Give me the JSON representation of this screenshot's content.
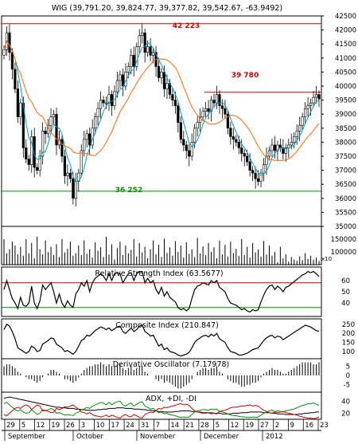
{
  "chart_data": {
    "type": "line",
    "panels": {
      "price": {
        "title": "WIG (39,791.20, 39,824.77, 39,377.82, 39,542.67, -63.9492)",
        "ylim": [
          35000,
          42500
        ],
        "yticks": [
          35000,
          35500,
          36000,
          36500,
          37000,
          37500,
          38000,
          38500,
          39000,
          39500,
          40000,
          40500,
          41000,
          41500,
          42000,
          42500
        ],
        "levels": [
          {
            "label": "42 223",
            "value": 42223,
            "color": "#d00000"
          },
          {
            "label": "39 780",
            "value": 39780,
            "color": "#d00000"
          },
          {
            "label": "36 252",
            "value": 36252,
            "color": "#009000"
          }
        ],
        "close": [
          41300,
          41900,
          41200,
          40600,
          39900,
          38900,
          39400,
          37800,
          37400,
          37200,
          38200,
          37100,
          37000,
          37500,
          38400,
          38300,
          38600,
          38900,
          39000,
          37900,
          38100,
          37500,
          36800,
          36900,
          36700,
          36000,
          36600,
          36900,
          37700,
          38100,
          38300,
          37900,
          38500,
          38900,
          39200,
          39500,
          39400,
          39400,
          39700,
          39300,
          39800,
          40200,
          40400,
          40000,
          40500,
          40700,
          41100,
          40700,
          41400,
          41800,
          41900,
          41200,
          41400,
          41100,
          41200,
          40700,
          40300,
          40500,
          39900,
          40100,
          39700,
          39500,
          39300,
          38700,
          38100,
          37900,
          37700,
          37500,
          38000,
          38500,
          38700,
          38900,
          39100,
          39200,
          39100,
          39500,
          39400,
          39700,
          39300,
          39200,
          39000,
          38500,
          38200,
          38100,
          38000,
          37800,
          37600,
          37500,
          37300,
          37000,
          36900,
          36700,
          36600,
          36900,
          37200,
          37500,
          37700,
          37900,
          37700,
          37900,
          37800,
          37600,
          37800,
          37900,
          38000,
          38200,
          38400,
          38600,
          38900,
          39200,
          39300,
          39400,
          39600,
          39700,
          39543
        ]
      },
      "volume": {
        "yticks": [
          100000,
          150000
        ],
        "ylim": [
          50000,
          200000
        ],
        "multiplier_label": "x10",
        "values": [
          150000,
          95000,
          110000,
          140000,
          125000,
          90000,
          120000,
          85000,
          150000,
          95000,
          135000,
          75000,
          160000,
          110000,
          90000,
          145000,
          100000,
          120000,
          88000,
          130000,
          80000,
          150000,
          98000,
          112000,
          140000,
          85000,
          95000,
          125000,
          88000,
          145000,
          92000,
          110000,
          78000,
          138000,
          105000,
          118000,
          80000,
          160000,
          90000,
          130000,
          70000,
          115000,
          140000,
          88000,
          125000,
          95000,
          108000,
          150000,
          82000,
          135000,
          98000,
          120000,
          76000,
          110000,
          145000,
          90000,
          128000,
          80000,
          152000,
          96000,
          118000,
          85000,
          142000,
          100000,
          125000,
          78000,
          138000,
          92000,
          110000,
          80000,
          155000,
          94000,
          122000,
          86000,
          135000,
          100000,
          118000,
          75000,
          145000,
          90000,
          128000,
          82000,
          140000,
          96000,
          112000,
          84000,
          150000,
          88000,
          120000,
          78000,
          135000,
          98000,
          110000,
          82000,
          143000,
          90000,
          125000,
          85000,
          100000,
          60000,
          120000,
          75000,
          90000,
          62000,
          80000,
          70000,
          65000,
          82000,
          68000,
          95000,
          72000,
          85000,
          70000,
          78000,
          65000
        ]
      },
      "rsi": {
        "title": "Relative Strength Index (63.5677)",
        "yticks": [
          40,
          50,
          60
        ],
        "ylim": [
          28,
          72
        ],
        "upper": 58,
        "lower": 36,
        "values": [
          52,
          60,
          52,
          44,
          40,
          35,
          45,
          38,
          37,
          40,
          55,
          40,
          35,
          42,
          56,
          52,
          55,
          58,
          50,
          40,
          48,
          40,
          36,
          42,
          38,
          36,
          48,
          52,
          58,
          55,
          60,
          50,
          58,
          62,
          64,
          66,
          64,
          60,
          66,
          60,
          66,
          67,
          66,
          58,
          62,
          66,
          67,
          60,
          66,
          68,
          68,
          58,
          62,
          58,
          60,
          52,
          48,
          54,
          46,
          50,
          45,
          43,
          41,
          36,
          34,
          35,
          33,
          35,
          44,
          52,
          55,
          56,
          58,
          57,
          56,
          60,
          58,
          60,
          54,
          52,
          50,
          44,
          40,
          39,
          38,
          36,
          34,
          35,
          33,
          32,
          34,
          33,
          34,
          41,
          47,
          52,
          55,
          56,
          52,
          55,
          53,
          50,
          54,
          55,
          57,
          59,
          61,
          63,
          65,
          66,
          68,
          67,
          68,
          66,
          63.5677
        ]
      },
      "composite": {
        "title": "Composite Index (210.847)",
        "yticks": [
          100,
          150,
          200,
          250
        ],
        "ylim": [
          60,
          280
        ],
        "values": [
          220,
          250,
          240,
          210,
          170,
          120,
          110,
          100,
          90,
          100,
          130,
          120,
          100,
          105,
          140,
          150,
          160,
          175,
          170,
          140,
          130,
          120,
          100,
          105,
          95,
          85,
          100,
          130,
          160,
          170,
          190,
          185,
          200,
          215,
          225,
          235,
          230,
          220,
          230,
          215,
          225,
          235,
          240,
          210,
          200,
          215,
          230,
          210,
          220,
          240,
          245,
          210,
          200,
          185,
          190,
          160,
          130,
          140,
          110,
          120,
          100,
          95,
          90,
          80,
          75,
          80,
          85,
          95,
          120,
          150,
          165,
          175,
          185,
          190,
          180,
          195,
          185,
          200,
          170,
          160,
          150,
          120,
          100,
          95,
          90,
          80,
          80,
          85,
          90,
          100,
          110,
          115,
          120,
          140,
          160,
          175,
          185,
          190,
          175,
          185,
          180,
          165,
          175,
          185,
          195,
          205,
          215,
          225,
          235,
          245,
          240,
          235,
          225,
          215,
          210.847
        ]
      },
      "derivative": {
        "title": "Derivative Oscillator (7.17978)",
        "yticks": [
          -5,
          0,
          5
        ],
        "ylim": [
          -9,
          9
        ],
        "values": [
          5,
          6,
          6,
          5,
          4,
          2,
          1,
          0,
          -1,
          -2,
          -2,
          -3,
          -4,
          -3,
          -1,
          0,
          1,
          3,
          3,
          2,
          1,
          0,
          -2,
          -2,
          -3,
          -4,
          -3,
          -1,
          1,
          3,
          4,
          5,
          5,
          6,
          6,
          7,
          6,
          5,
          6,
          5,
          5,
          6,
          6,
          4,
          3,
          4,
          5,
          3,
          4,
          5,
          5,
          2,
          1,
          0,
          0,
          -2,
          -3,
          -2,
          -4,
          -3,
          -4,
          -5,
          -6,
          -7,
          -7,
          -6,
          -5,
          -4,
          -2,
          0,
          2,
          3,
          4,
          4,
          3,
          4,
          4,
          5,
          2,
          1,
          0,
          -2,
          -3,
          -4,
          -4,
          -5,
          -6,
          -6,
          -5,
          -5,
          -4,
          -4,
          -3,
          -1,
          1,
          2,
          3,
          4,
          3,
          3,
          2,
          1,
          1,
          2,
          3,
          4,
          5,
          6,
          7,
          7,
          7,
          7,
          6,
          6,
          7.17978
        ]
      },
      "adx": {
        "title": "ADX, +DI, -DI",
        "yticks": [
          20,
          40
        ],
        "ylim": [
          10,
          55
        ],
        "adx": [
          45,
          46,
          47,
          46,
          45,
          44,
          43,
          42,
          41,
          40,
          39,
          38,
          37,
          36,
          35,
          34,
          33,
          32,
          31,
          30,
          30,
          29,
          29,
          28,
          28,
          28,
          27,
          27,
          26,
          26,
          25,
          25,
          25,
          25,
          26,
          26,
          27,
          27,
          28,
          28,
          28,
          29,
          29,
          29,
          28,
          28,
          28,
          27,
          27,
          27,
          26,
          26,
          25,
          25,
          24,
          24,
          23,
          23,
          22,
          22,
          22,
          22,
          23,
          23,
          24,
          24,
          24,
          24,
          23,
          23,
          22,
          22,
          21,
          21,
          21,
          21,
          20,
          20,
          20,
          19,
          19,
          19,
          19,
          20,
          20,
          20,
          21,
          21,
          21,
          22,
          22,
          22,
          22,
          22,
          21,
          21,
          21,
          20,
          20,
          19,
          19,
          19,
          18,
          18,
          18,
          18,
          18,
          19,
          19,
          20,
          20,
          21,
          21,
          22,
          22
        ],
        "plus_di": [
          36,
          38,
          34,
          30,
          26,
          24,
          26,
          22,
          20,
          21,
          26,
          22,
          18,
          20,
          26,
          24,
          26,
          28,
          26,
          20,
          21,
          19,
          17,
          18,
          17,
          16,
          20,
          22,
          26,
          27,
          30,
          28,
          32,
          34,
          36,
          38,
          37,
          34,
          38,
          34,
          37,
          39,
          40,
          34,
          32,
          35,
          37,
          32,
          35,
          38,
          39,
          32,
          30,
          27,
          28,
          24,
          21,
          22,
          19,
          20,
          18,
          17,
          16,
          14,
          13,
          14,
          13,
          14,
          18,
          22,
          24,
          25,
          26,
          26,
          25,
          27,
          26,
          27,
          23,
          22,
          21,
          19,
          17,
          16,
          16,
          15,
          14,
          14,
          13,
          13,
          14,
          13,
          14,
          17,
          20,
          22,
          24,
          25,
          23,
          24,
          23,
          22,
          24,
          25,
          26,
          27,
          29,
          31,
          33,
          34,
          36,
          36,
          37,
          35,
          33
        ],
        "minus_di": [
          18,
          16,
          20,
          24,
          28,
          30,
          28,
          32,
          34,
          32,
          26,
          30,
          34,
          32,
          24,
          25,
          23,
          21,
          22,
          28,
          26,
          28,
          31,
          30,
          32,
          34,
          30,
          27,
          22,
          21,
          19,
          21,
          18,
          16,
          15,
          14,
          15,
          17,
          14,
          17,
          15,
          13,
          12,
          16,
          18,
          15,
          14,
          18,
          16,
          13,
          12,
          18,
          20,
          22,
          21,
          25,
          28,
          27,
          30,
          29,
          31,
          32,
          33,
          35,
          36,
          34,
          35,
          33,
          28,
          24,
          22,
          21,
          20,
          20,
          21,
          19,
          20,
          19,
          23,
          24,
          25,
          27,
          29,
          30,
          30,
          31,
          32,
          32,
          33,
          34,
          32,
          33,
          32,
          28,
          25,
          23,
          21,
          20,
          22,
          21,
          22,
          23,
          21,
          20,
          19,
          18,
          17,
          15,
          14,
          13,
          12,
          12,
          11,
          12,
          14
        ]
      }
    },
    "date_labels": [
      "29",
      "5",
      "12",
      "19",
      "26",
      "3",
      "10",
      "17",
      "24",
      "31",
      "7",
      "14",
      "21",
      "28",
      "5",
      "12",
      "19",
      "27",
      "2",
      "9",
      "16",
      "23"
    ],
    "month_labels": [
      "September",
      "October",
      "November",
      "December",
      "2012"
    ],
    "colors": {
      "candle": "#000000",
      "ma_short": "#00a0c8",
      "ma_long": "#ff6600",
      "red": "#d00000",
      "green": "#009000"
    }
  }
}
